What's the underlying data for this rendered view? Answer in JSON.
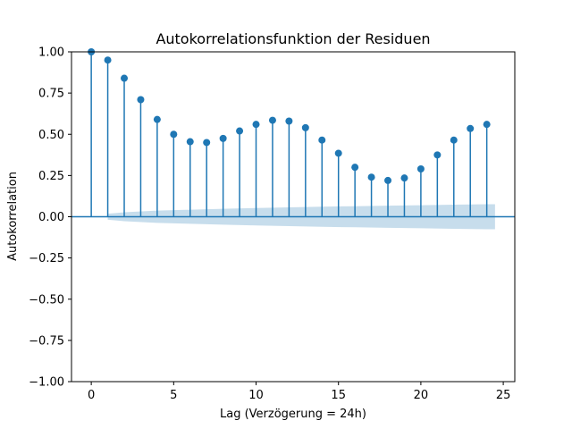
{
  "chart_data": {
    "type": "stem",
    "title": "Autokorrelationsfunktion der Residuen",
    "xlabel": "Lag (Verzögerung = 24h)",
    "ylabel": "Autokorrelation",
    "xlim": [
      -1.2,
      25.7
    ],
    "ylim": [
      -1.0,
      1.0
    ],
    "x_ticks": [
      0,
      5,
      10,
      15,
      20,
      25
    ],
    "y_ticks": [
      -1.0,
      -0.75,
      -0.5,
      -0.25,
      0.0,
      0.25,
      0.5,
      0.75,
      1.0
    ],
    "y_tick_labels": [
      "−1.00",
      "−0.75",
      "−0.50",
      "−0.25",
      "0.00",
      "0.25",
      "0.50",
      "0.75",
      "1.00"
    ],
    "x_tick_labels": [
      "0",
      "5",
      "10",
      "15",
      "20",
      "25"
    ],
    "lags": [
      0,
      1,
      2,
      3,
      4,
      5,
      6,
      7,
      8,
      9,
      10,
      11,
      12,
      13,
      14,
      15,
      16,
      17,
      18,
      19,
      20,
      21,
      22,
      23,
      24
    ],
    "values": [
      1.0,
      0.95,
      0.84,
      0.71,
      0.59,
      0.5,
      0.455,
      0.45,
      0.475,
      0.52,
      0.56,
      0.585,
      0.58,
      0.54,
      0.465,
      0.385,
      0.3,
      0.24,
      0.22,
      0.235,
      0.29,
      0.375,
      0.465,
      0.535,
      0.56
    ],
    "confidence_band": {
      "lags": [
        1,
        2,
        4,
        6,
        8,
        10,
        12,
        14,
        16,
        18,
        20,
        22,
        24,
        24.5
      ],
      "upper": [
        0.018,
        0.027,
        0.037,
        0.043,
        0.048,
        0.053,
        0.057,
        0.061,
        0.064,
        0.067,
        0.07,
        0.073,
        0.076,
        0.076
      ]
    },
    "grid": false,
    "colors": {
      "stem": "#1f77b4",
      "band": "#1f77b4",
      "zero_line": "#1f77b4"
    }
  }
}
